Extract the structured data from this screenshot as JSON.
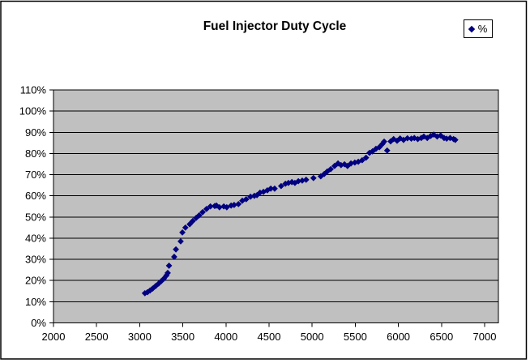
{
  "chart": {
    "title": "Fuel Injector Duty Cycle",
    "legend_label": "%"
  },
  "chart_data": {
    "type": "scatter",
    "title": "Fuel Injector Duty Cycle",
    "xlabel": "",
    "ylabel": "",
    "xlim": [
      2000,
      7160
    ],
    "ylim": [
      0,
      110
    ],
    "x_ticks": [
      2000,
      2500,
      3000,
      3500,
      4000,
      4500,
      5000,
      5500,
      6000,
      6500,
      7000
    ],
    "x_tick_labels": [
      "2000",
      "2500",
      "3000",
      "3500",
      "4000",
      "4500",
      "5000",
      "5500",
      "6000",
      "6500",
      "7000"
    ],
    "y_ticks": [
      0,
      10,
      20,
      30,
      40,
      50,
      60,
      70,
      80,
      90,
      100,
      110
    ],
    "y_tick_labels": [
      "0%",
      "10%",
      "20%",
      "30%",
      "40%",
      "50%",
      "60%",
      "70%",
      "80%",
      "90%",
      "100%",
      "110%"
    ],
    "grid": "horizontal",
    "legend_position": "top-right",
    "colors": {
      "marker": "#000080",
      "plot_bg": "#c0c0c0",
      "gridline": "#000000",
      "axis": "#000000",
      "chart_border": "#000000",
      "background": "#ffffff"
    },
    "series": [
      {
        "name": "%",
        "marker": "diamond",
        "points": [
          [
            3060,
            14.0
          ],
          [
            3090,
            14.5
          ],
          [
            3120,
            15.3
          ],
          [
            3150,
            16.2
          ],
          [
            3185,
            17.4
          ],
          [
            3220,
            18.6
          ],
          [
            3250,
            19.7
          ],
          [
            3280,
            20.9
          ],
          [
            3310,
            22.4
          ],
          [
            3325,
            23.6
          ],
          [
            3340,
            27.0
          ],
          [
            3400,
            31.2
          ],
          [
            3420,
            34.7
          ],
          [
            3475,
            38.5
          ],
          [
            3495,
            42.7
          ],
          [
            3530,
            45.0
          ],
          [
            3580,
            46.6
          ],
          [
            3615,
            48.1
          ],
          [
            3655,
            49.6
          ],
          [
            3690,
            50.8
          ],
          [
            3730,
            52.3
          ],
          [
            3775,
            53.8
          ],
          [
            3820,
            55.0
          ],
          [
            3870,
            55.2
          ],
          [
            3890,
            55.4
          ],
          [
            3925,
            54.6
          ],
          [
            3975,
            55.0
          ],
          [
            4010,
            54.6
          ],
          [
            4060,
            55.4
          ],
          [
            4095,
            55.7
          ],
          [
            4145,
            56.1
          ],
          [
            4190,
            57.7
          ],
          [
            4235,
            58.4
          ],
          [
            4285,
            59.6
          ],
          [
            4330,
            60.0
          ],
          [
            4360,
            60.3
          ],
          [
            4395,
            61.5
          ],
          [
            4435,
            61.9
          ],
          [
            4480,
            62.6
          ],
          [
            4520,
            63.4
          ],
          [
            4565,
            63.4
          ],
          [
            4640,
            64.6
          ],
          [
            4690,
            65.7
          ],
          [
            4725,
            66.1
          ],
          [
            4765,
            66.5
          ],
          [
            4800,
            66.1
          ],
          [
            4840,
            66.9
          ],
          [
            4885,
            67.2
          ],
          [
            4930,
            67.6
          ],
          [
            5015,
            68.4
          ],
          [
            5100,
            69.2
          ],
          [
            5140,
            70.3
          ],
          [
            5175,
            71.5
          ],
          [
            5215,
            72.6
          ],
          [
            5260,
            74.1
          ],
          [
            5300,
            75.3
          ],
          [
            5335,
            74.5
          ],
          [
            5375,
            74.9
          ],
          [
            5410,
            74.1
          ],
          [
            5450,
            75.3
          ],
          [
            5495,
            75.7
          ],
          [
            5535,
            76.1
          ],
          [
            5580,
            76.8
          ],
          [
            5625,
            78.0
          ],
          [
            5665,
            80.3
          ],
          [
            5700,
            81.0
          ],
          [
            5740,
            82.2
          ],
          [
            5780,
            83.0
          ],
          [
            5815,
            84.5
          ],
          [
            5835,
            85.6
          ],
          [
            5870,
            81.4
          ],
          [
            5910,
            85.7
          ],
          [
            5945,
            86.8
          ],
          [
            5985,
            86.0
          ],
          [
            6020,
            87.1
          ],
          [
            6060,
            86.4
          ],
          [
            6105,
            87.2
          ],
          [
            6150,
            87.0
          ],
          [
            6185,
            87.3
          ],
          [
            6225,
            86.8
          ],
          [
            6265,
            87.3
          ],
          [
            6295,
            88.0
          ],
          [
            6335,
            87.3
          ],
          [
            6375,
            88.3
          ],
          [
            6410,
            88.9
          ],
          [
            6450,
            88.0
          ],
          [
            6490,
            88.5
          ],
          [
            6530,
            87.3
          ],
          [
            6560,
            87.0
          ],
          [
            6600,
            87.3
          ],
          [
            6640,
            86.8
          ],
          [
            6660,
            86.4
          ]
        ]
      }
    ]
  }
}
